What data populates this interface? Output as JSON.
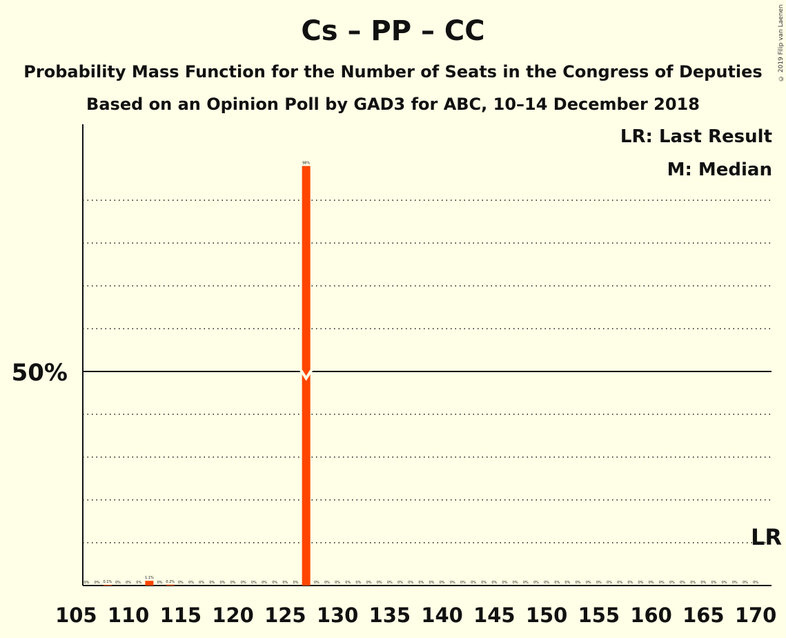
{
  "chart_data": {
    "type": "bar",
    "title": "Cs – PP – CC",
    "subtitle_1": "Probability Mass Function for the Number of Seats in the Congress of Deputies",
    "subtitle_2": "Based on an Opinion Poll by GAD3 for ABC, 10–14 December 2018",
    "copyright": "© 2019 Filip van Laenen",
    "legend": {
      "last_result": "LR: Last Result",
      "median": "M: Median"
    },
    "xlim": [
      105,
      170
    ],
    "ylim": [
      0,
      100
    ],
    "x_ticks": [
      105,
      110,
      115,
      120,
      125,
      130,
      135,
      140,
      145,
      150,
      155,
      160,
      165,
      170
    ],
    "y_tick_label": "50%",
    "y_tick_value": 50,
    "gridlines": [
      10,
      20,
      30,
      40,
      60,
      70,
      80,
      90
    ],
    "median_seat": 127,
    "last_result_seat": 170,
    "last_result_label": "LR",
    "bar_color": "#FF4500",
    "series": [
      {
        "x": [
          106,
          107,
          108,
          109,
          110,
          111,
          112,
          113,
          114,
          115,
          116,
          117,
          118,
          119,
          120,
          121,
          122,
          123,
          124,
          125,
          126,
          127,
          128,
          129,
          130,
          131,
          132,
          133,
          134,
          135,
          136,
          137,
          138,
          139,
          140,
          141,
          142,
          143,
          144,
          145,
          146,
          147,
          148,
          149,
          150,
          151,
          152,
          153,
          154,
          155,
          156,
          157,
          158,
          159,
          160,
          161,
          162,
          163,
          164,
          165,
          166,
          167,
          168,
          169,
          170
        ],
        "values": [
          0,
          0,
          0.1,
          0,
          0,
          0,
          1.1,
          0,
          0.2,
          0,
          0,
          0,
          0,
          0,
          0,
          0,
          0,
          0,
          0,
          0,
          0,
          98,
          0,
          0,
          0,
          0,
          0,
          0,
          0,
          0,
          0,
          0,
          0,
          0,
          0,
          0,
          0,
          0,
          0,
          0,
          0,
          0,
          0,
          0,
          0,
          0,
          0,
          0,
          0,
          0,
          0,
          0,
          0,
          0,
          0,
          0,
          0,
          0,
          0,
          0,
          0,
          0,
          0,
          0,
          0
        ],
        "labels": [
          "0%",
          "0%",
          "0.1%",
          "0%",
          "0%",
          "0%",
          "1.1%",
          "0%",
          "0.2%",
          "0%",
          "0%",
          "0%",
          "0%",
          "0%",
          "0%",
          "0%",
          "0%",
          "0%",
          "0%",
          "0%",
          "0%",
          "98%",
          "0%",
          "0%",
          "0%",
          "0%",
          "0%",
          "0%",
          "0%",
          "0%",
          "0%",
          "0%",
          "0%",
          "0%",
          "0%",
          "0%",
          "0%",
          "0%",
          "0%",
          "0%",
          "0%",
          "0%",
          "0%",
          "0%",
          "0%",
          "0%",
          "0%",
          "0%",
          "0%",
          "0%",
          "0%",
          "0%",
          "0%",
          "0%",
          "0%",
          "0%",
          "0%",
          "0%",
          "0%",
          "0%",
          "0%",
          "0%",
          "0%",
          "0%",
          "0%"
        ]
      }
    ]
  }
}
